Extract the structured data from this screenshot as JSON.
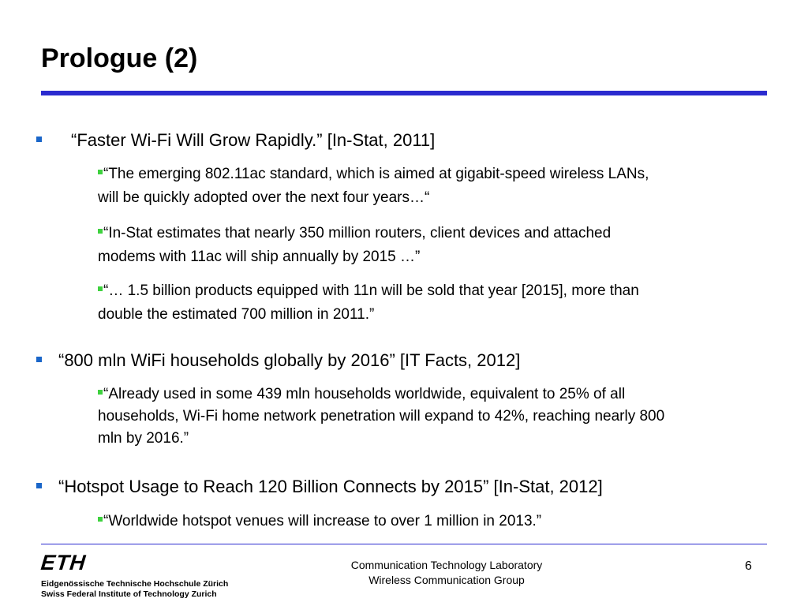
{
  "slide": {
    "title": "Prologue (2)"
  },
  "bullets": [
    {
      "text": "“Faster Wi-Fi Will Grow Rapidly.” [In-Stat, 2011]",
      "sub": [
        {
          "line1": "“The emerging 802.11ac standard, which is aimed at gigabit-speed wireless LANs,",
          "line2": "will be quickly adopted over the next four years…“"
        },
        {
          "line1": "“In-Stat estimates that nearly 350 million routers, client devices and attached",
          "line2": "modems with 11ac will ship annually by 2015 …”"
        },
        {
          "line1": "“… 1.5 billion products equipped with 11n will be sold that year [2015], more than",
          "line2": "double the estimated 700 million in 2011.”"
        }
      ]
    },
    {
      "text": "“800 mln WiFi households globally by 2016” [IT Facts, 2012]",
      "sub": [
        {
          "line1": "“Already used in some 439 mln households worldwide, equivalent to 25% of all",
          "line2": "households, Wi-Fi home network penetration will expand to 42%, reaching nearly 800",
          "line3": "mln by 2016.”"
        }
      ]
    },
    {
      "text": "“Hotspot Usage to Reach 120 Billion Connects by 2015” [In-Stat, 2012]",
      "sub": [
        {
          "line1": "“Worldwide hotspot venues will increase to over 1 million in 2013.”"
        }
      ]
    }
  ],
  "footer": {
    "logo_word": "ETH",
    "logo_line1": "Eidgenössische Technische Hochschule Zürich",
    "logo_line2": "Swiss Federal Institute of Technology Zurich",
    "center_line1": "Communication Technology Laboratory",
    "center_line2": "Wireless Communication Group",
    "page_number": "6"
  },
  "colors": {
    "rule": "#2b2bcf",
    "bullet_l1": "#1a66c9",
    "bullet_l2": "#3ed13e"
  }
}
